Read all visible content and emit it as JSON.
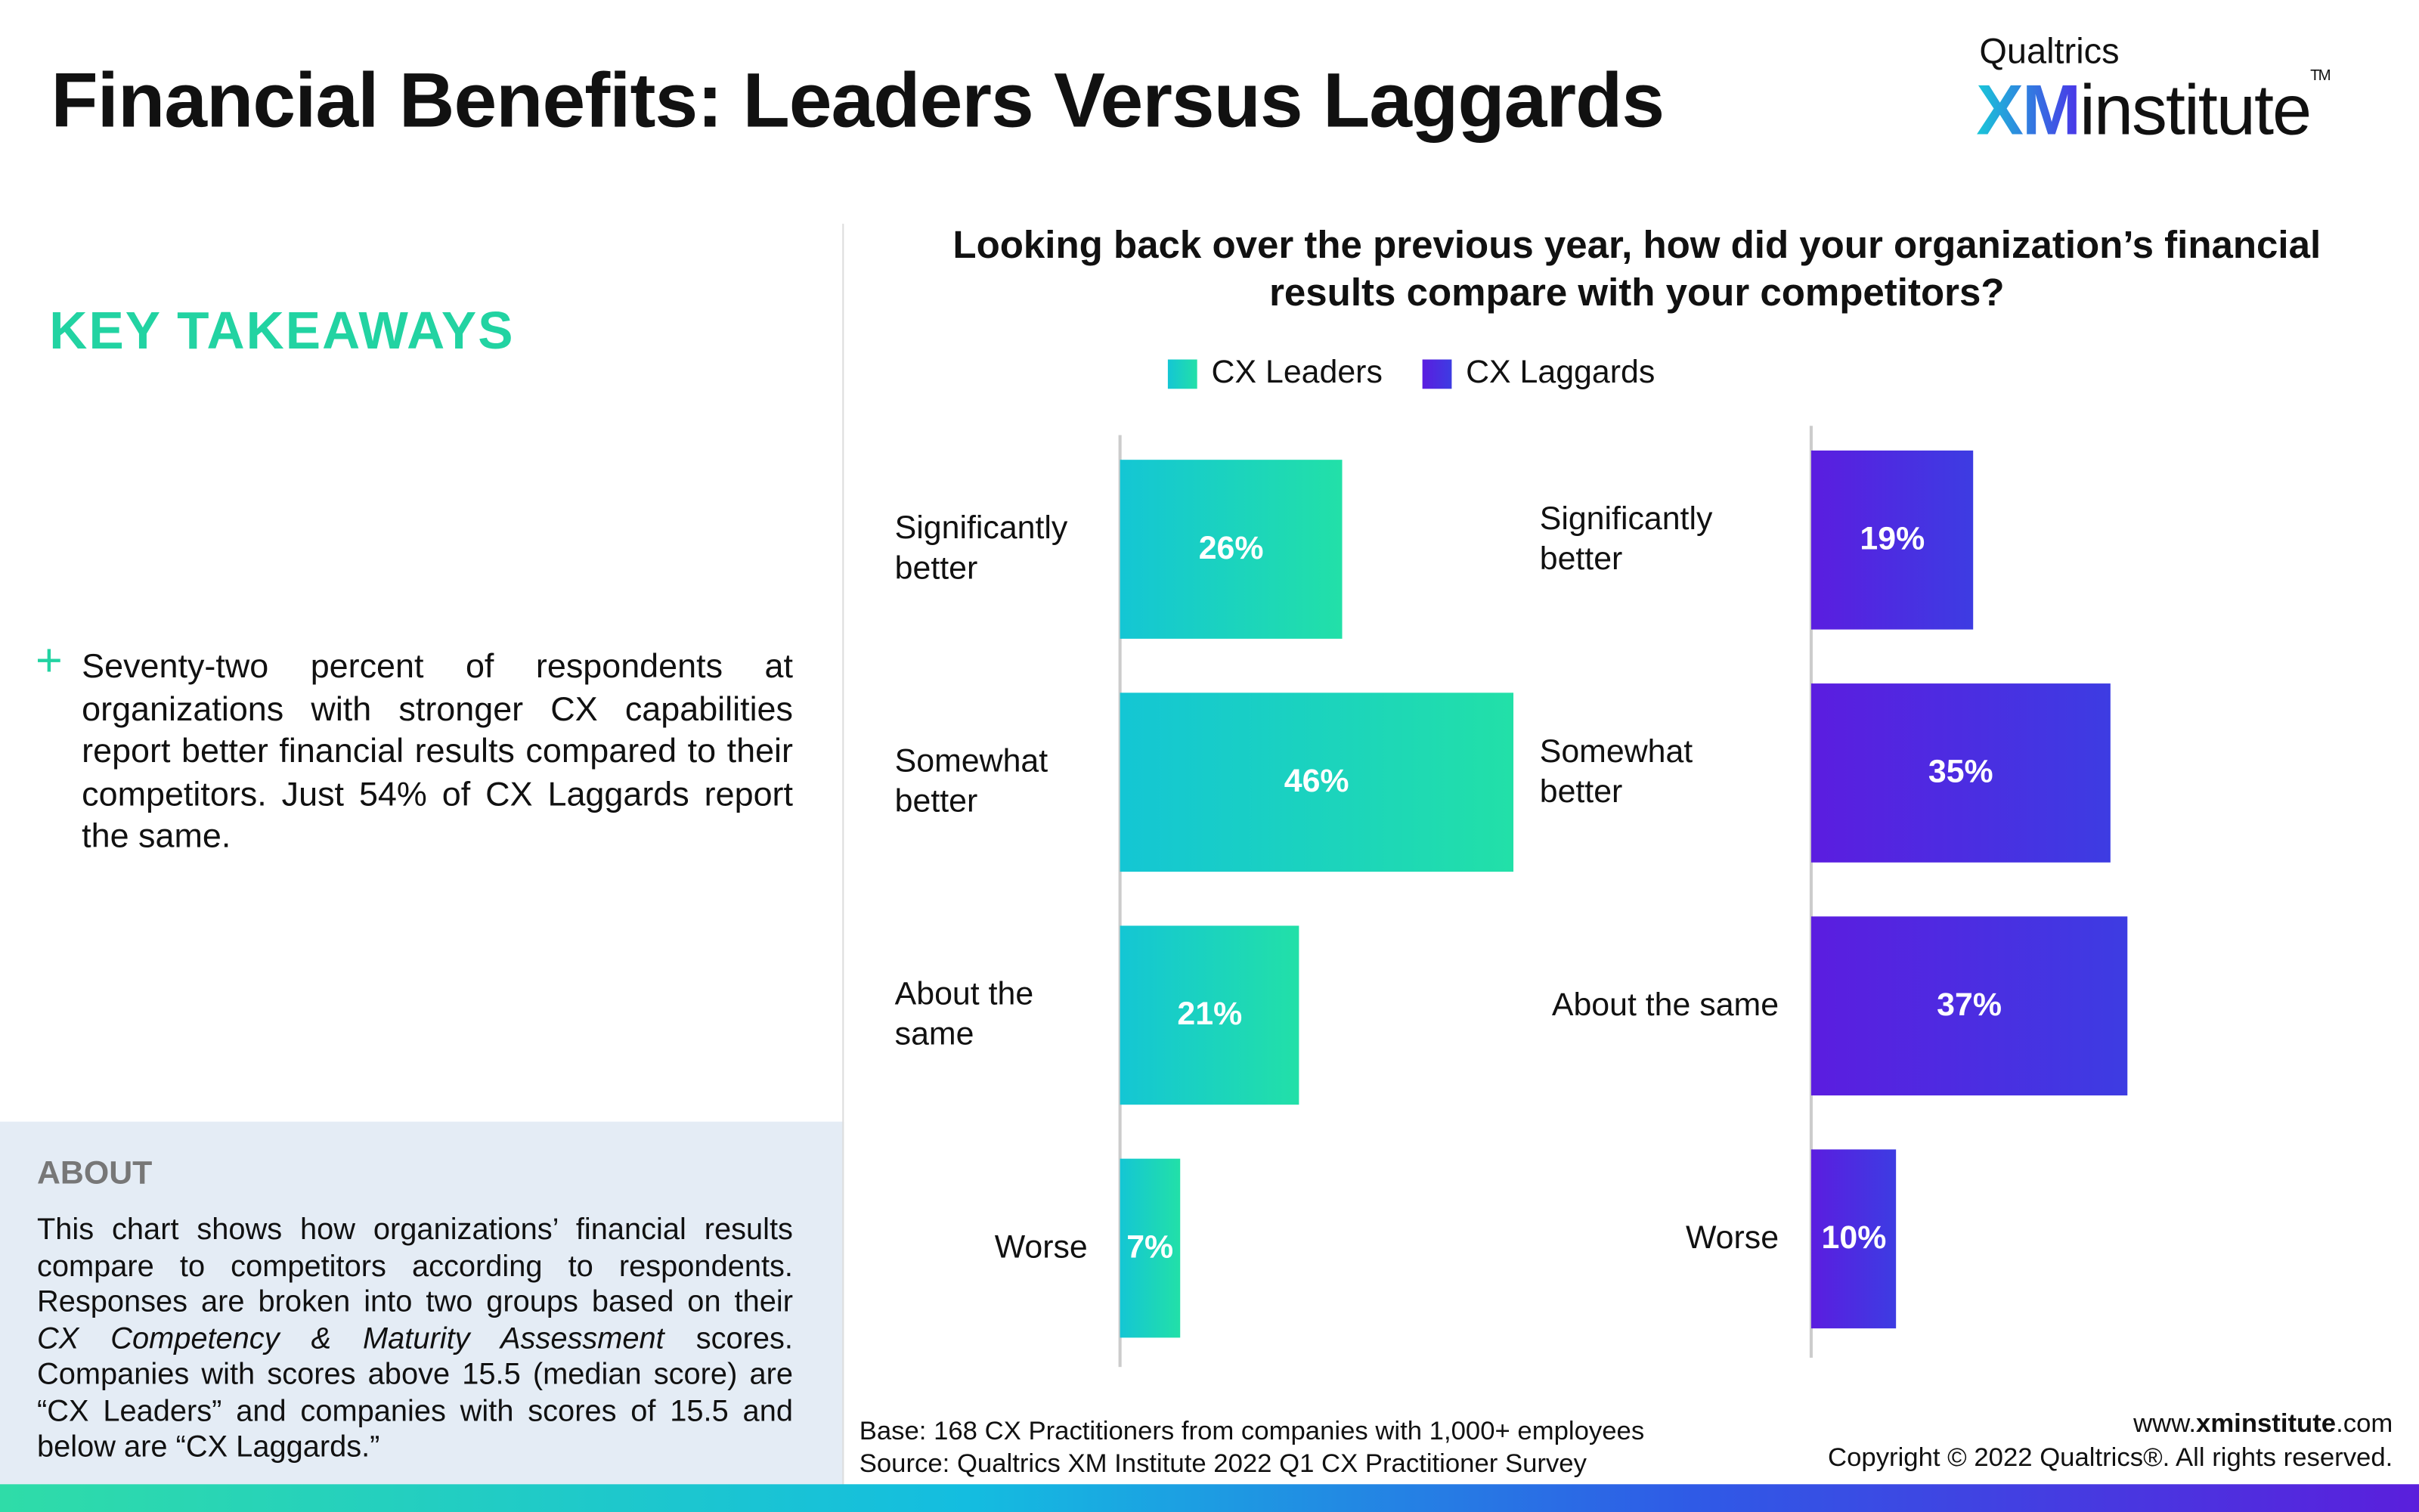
{
  "header": {
    "title": "Financial Benefits: Leaders Versus Laggards",
    "logo_top": "Qualtrics",
    "logo_xm": "XM",
    "logo_rest": "institute",
    "logo_tm": "TM"
  },
  "takeaways": {
    "heading": "KEY TAKEAWAYS",
    "bullet_mark": "+",
    "bullet": "Seventy-two percent of respondents at organizations with stronger CX capabilities report better financial results compared to their competitors. Just 54% of CX Laggards report the same."
  },
  "about": {
    "heading": "ABOUT",
    "text_1": "This chart shows how organizations’ financial results compare to competitors according to respondents. Responses are broken into two groups based on their ",
    "text_italic": "CX Competency & Maturity Assessment",
    "text_2": " scores. Companies with scores above 15.5 (median score) are “CX Leaders” and companies with scores of 15.5 and below are “CX Laggards.”"
  },
  "chart_data": {
    "type": "bar",
    "orientation": "horizontal",
    "title": "Looking back over the previous year, how did your organization’s financial results compare with your competitors?",
    "categories": [
      "Significantly better",
      "Somewhat better",
      "About the same",
      "Worse"
    ],
    "series": [
      {
        "name": "CX Leaders",
        "gradient": [
          "#14c6d4",
          "#22e0a8"
        ],
        "values": [
          26,
          46,
          21,
          7
        ],
        "value_labels": [
          "26%",
          "46%",
          "21%",
          "7%"
        ]
      },
      {
        "name": "CX Laggards",
        "gradient": [
          "#5b1de0",
          "#3d3ce2"
        ],
        "values": [
          19,
          35,
          37,
          10
        ],
        "value_labels": [
          "19%",
          "35%",
          "37%",
          "10%"
        ]
      }
    ],
    "xlim": [
      0,
      50
    ]
  },
  "footer": {
    "base": "Base: 168 CX Practitioners from companies with 1,000+ employees",
    "source": "Source: Qualtrics XM Institute 2022 Q1 CX Practitioner Survey",
    "url_pre": "www.",
    "url_bold": "xminstitute",
    "url_post": ".com",
    "copyright": "Copyright © 2022 Qualtrics®. All rights reserved."
  }
}
